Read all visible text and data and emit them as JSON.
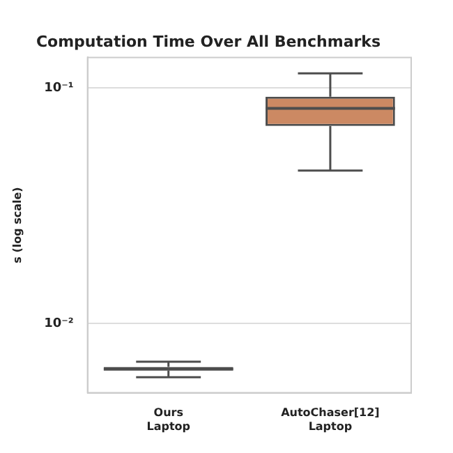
{
  "chart_data": {
    "type": "box",
    "title": "Computation Time Over All Benchmarks",
    "ylabel": "s (log scale)",
    "categories": [
      "Ours\nLaptop",
      "AutoChaser[12]\nLaptop"
    ],
    "boxes": [
      {
        "low": 0.0059,
        "q1": 0.0063,
        "median": 0.0064,
        "q3": 0.00653,
        "high": 0.00687
      },
      {
        "low": 0.0446,
        "q1": 0.069,
        "median": 0.082,
        "q3": 0.092,
        "high": 0.1155
      }
    ],
    "colors": [
      "#5a5a5a",
      "#cc8963"
    ],
    "log": true,
    "ylim": [
      0.00507,
      0.135
    ],
    "yticks": [
      {
        "value": 0.01,
        "label": "10⁻²"
      },
      {
        "value": 0.1,
        "label": "10⁻¹"
      }
    ],
    "grid": "y"
  }
}
